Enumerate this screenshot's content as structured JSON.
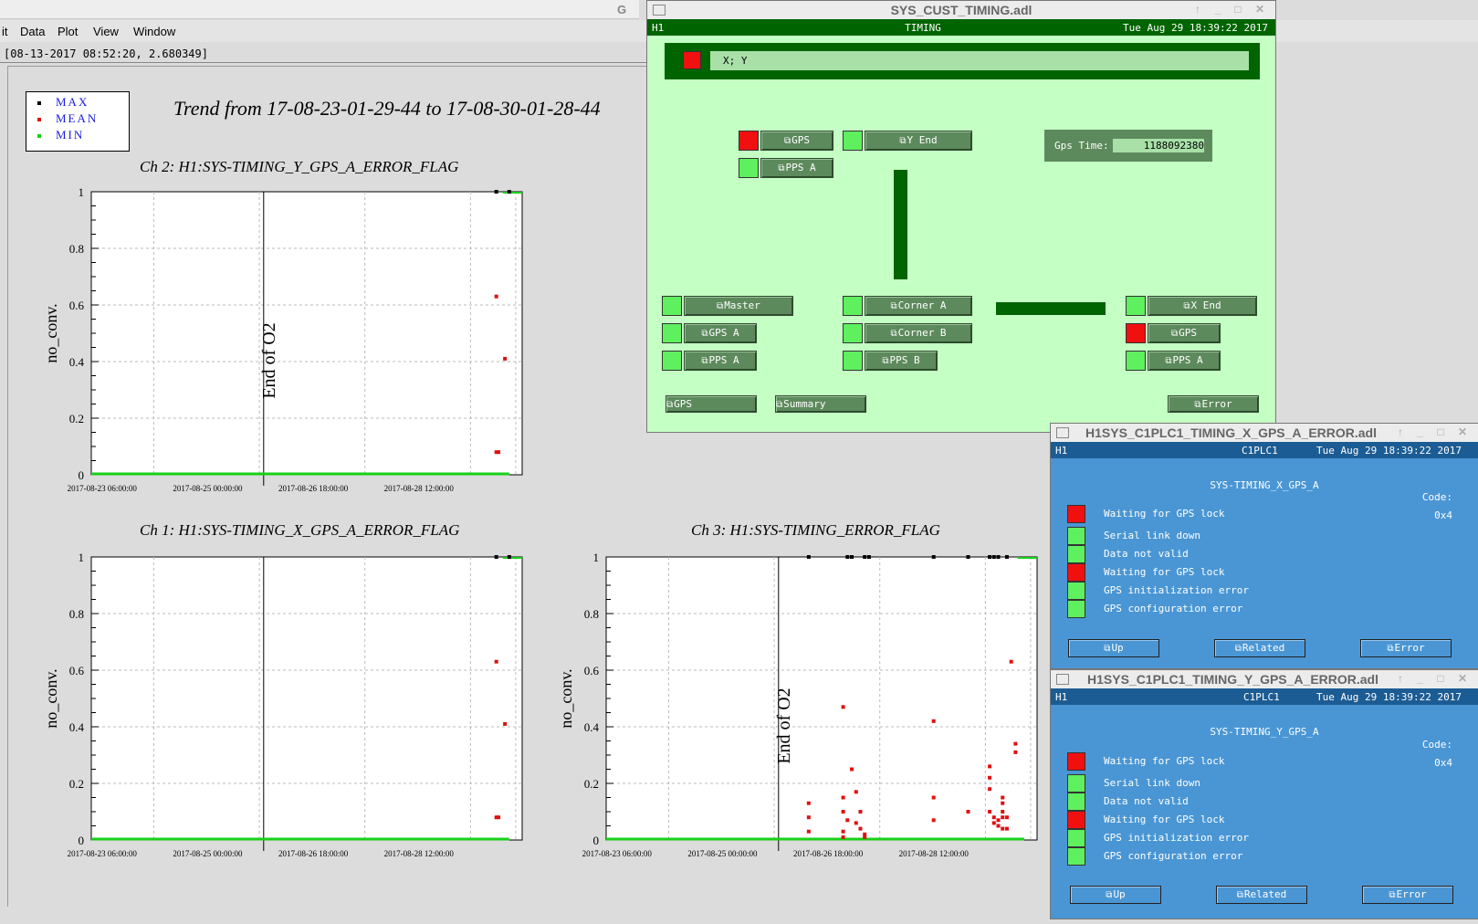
{
  "background_app": {
    "top_fragment": "G",
    "menu": [
      "it",
      "Data",
      "Plot",
      "View",
      "Window"
    ],
    "cursor_readout": "[08-13-2017 08:52:20, 2.680349]",
    "legend": [
      "MAX",
      "MEAN",
      "MIN"
    ],
    "legend_colors": [
      "#000000",
      "#e01010",
      "#18d018"
    ],
    "trend_title": "Trend from 17-08-23-01-29-44 to 17-08-30-01-28-44",
    "marker_label": "End of O2"
  },
  "chart_data": [
    {
      "type": "scatter",
      "title": "Ch 2: H1:SYS-TIMING_Y_GPS_A_ERROR_FLAG",
      "ylabel": "no_conv.",
      "ylim": [
        0,
        1
      ],
      "yticks": [
        "0",
        "0.2",
        "0.4",
        "0.6",
        "0.8",
        "1"
      ],
      "xticks": [
        "2017-08-23 06:00:00",
        "2017-08-25 00:00:00",
        "2017-08-26 18:00:00",
        "2017-08-28 12:00:00"
      ],
      "annotation": "End of O2",
      "series": [
        {
          "name": "MAX",
          "color": "#000000",
          "points": [
            [
              0.94,
              1
            ],
            [
              0.97,
              1
            ]
          ]
        },
        {
          "name": "MEAN",
          "color": "#e01010",
          "points": [
            [
              0.94,
              0.63
            ],
            [
              0.96,
              0.41
            ],
            [
              0.94,
              0.08
            ],
            [
              0.945,
              0.08
            ]
          ]
        },
        {
          "name": "MIN",
          "color": "#18d018",
          "points": [
            [
              0.0,
              0
            ],
            [
              0.97,
              0
            ]
          ]
        }
      ]
    },
    {
      "type": "scatter",
      "title": "Ch 1: H1:SYS-TIMING_X_GPS_A_ERROR_FLAG",
      "ylabel": "no_conv.",
      "ylim": [
        0,
        1
      ],
      "yticks": [
        "0",
        "0.2",
        "0.4",
        "0.6",
        "0.8",
        "1"
      ],
      "xticks": [
        "2017-08-23 06:00:00",
        "2017-08-25 00:00:00",
        "2017-08-26 18:00:00",
        "2017-08-28 12:00:00"
      ],
      "series": [
        {
          "name": "MAX",
          "color": "#000000",
          "points": [
            [
              0.94,
              1
            ],
            [
              0.97,
              1
            ]
          ]
        },
        {
          "name": "MEAN",
          "color": "#e01010",
          "points": [
            [
              0.94,
              0.63
            ],
            [
              0.96,
              0.41
            ],
            [
              0.94,
              0.08
            ],
            [
              0.945,
              0.08
            ]
          ]
        },
        {
          "name": "MIN",
          "color": "#18d018",
          "points": [
            [
              0.0,
              0
            ],
            [
              0.97,
              0
            ]
          ]
        }
      ]
    },
    {
      "type": "scatter",
      "title": "Ch 3: H1:SYS-TIMING_ERROR_FLAG",
      "ylabel": "no_conv.",
      "ylim": [
        0,
        1
      ],
      "yticks": [
        "0",
        "0.2",
        "0.4",
        "0.6",
        "0.8",
        "1"
      ],
      "xticks": [
        "2017-08-23 06:00:00",
        "2017-08-25 00:00:00",
        "2017-08-26 18:00:00",
        "2017-08-28 12:00:00"
      ],
      "annotation": "End of O2",
      "series": [
        {
          "name": "MAX",
          "color": "#000000",
          "points": [
            [
              0.47,
              1
            ],
            [
              0.56,
              1
            ],
            [
              0.57,
              1
            ],
            [
              0.6,
              1
            ],
            [
              0.61,
              1
            ],
            [
              0.76,
              1
            ],
            [
              0.84,
              1
            ],
            [
              0.89,
              1
            ],
            [
              0.9,
              1
            ],
            [
              0.91,
              1
            ],
            [
              0.93,
              1
            ]
          ]
        },
        {
          "name": "MEAN",
          "color": "#e01010",
          "points": [
            [
              0.47,
              0.13
            ],
            [
              0.47,
              0.08
            ],
            [
              0.47,
              0.03
            ],
            [
              0.55,
              0.47
            ],
            [
              0.55,
              0.15
            ],
            [
              0.55,
              0.1
            ],
            [
              0.56,
              0.07
            ],
            [
              0.55,
              0.03
            ],
            [
              0.55,
              0.01
            ],
            [
              0.57,
              0.25
            ],
            [
              0.58,
              0.17
            ],
            [
              0.59,
              0.1
            ],
            [
              0.58,
              0.06
            ],
            [
              0.59,
              0.04
            ],
            [
              0.6,
              0.02
            ],
            [
              0.6,
              0.01
            ],
            [
              0.76,
              0.42
            ],
            [
              0.76,
              0.15
            ],
            [
              0.76,
              0.07
            ],
            [
              0.84,
              0.1
            ],
            [
              0.89,
              0.26
            ],
            [
              0.89,
              0.22
            ],
            [
              0.89,
              0.18
            ],
            [
              0.89,
              0.1
            ],
            [
              0.9,
              0.08
            ],
            [
              0.9,
              0.06
            ],
            [
              0.91,
              0.05
            ],
            [
              0.91,
              0.07
            ],
            [
              0.92,
              0.15
            ],
            [
              0.92,
              0.13
            ],
            [
              0.92,
              0.1
            ],
            [
              0.92,
              0.08
            ],
            [
              0.92,
              0.04
            ],
            [
              0.93,
              0.04
            ],
            [
              0.93,
              0.08
            ],
            [
              0.94,
              0.63
            ],
            [
              0.95,
              0.34
            ],
            [
              0.95,
              0.31
            ]
          ]
        },
        {
          "name": "MIN",
          "color": "#18d018",
          "points": [
            [
              0.0,
              0
            ],
            [
              0.97,
              0
            ]
          ]
        }
      ]
    }
  ],
  "timing_window": {
    "title": "SYS_CUST_TIMING.adl",
    "header_left": "H1",
    "header_center": "TIMING",
    "header_right": "Tue Aug 29 18:39:22 2017",
    "xy_label": "X; Y",
    "gps_time_label": "Gps Time:",
    "gps_time_value": "1188092380",
    "buttons": {
      "top_gps": "GPS",
      "top_pps_a": "PPS A",
      "y_end": "Y End",
      "master": "Master",
      "gps_a": "GPS A",
      "pps_a": "PPS A",
      "corner_a": "Corner A",
      "corner_b": "Corner B",
      "pps_b": "PPS B",
      "x_end": "X End",
      "x_gps": "GPS",
      "x_pps_a": "PPS A",
      "bottom_gps": "GPS",
      "summary": "Summary",
      "error": "Error"
    }
  },
  "x_window": {
    "title": "H1SYS_C1PLC1_TIMING_X_GPS_A_ERROR.adl",
    "header_left": "H1",
    "header_center": "C1PLC1",
    "header_right": "Tue Aug 29 18:39:22 2017",
    "subtitle": "SYS-TIMING_X_GPS_A",
    "code_label": "Code:",
    "code_value": "0x4",
    "rows": [
      "Waiting for GPS lock",
      "Serial link down",
      "Data not valid",
      "Waiting for GPS lock",
      "GPS initialization error",
      "GPS configuration error"
    ],
    "row_states": [
      "red",
      "green",
      "green",
      "red",
      "green",
      "green"
    ],
    "buttons": [
      "Up",
      "Related",
      "Error"
    ]
  },
  "y_window": {
    "title": "H1SYS_C1PLC1_TIMING_Y_GPS_A_ERROR.adl",
    "header_left": "H1",
    "header_center": "C1PLC1",
    "header_right": "Tue Aug 29 18:39:22 2017",
    "subtitle": "SYS-TIMING_Y_GPS_A",
    "code_label": "Code:",
    "code_value": "0x4",
    "rows": [
      "Waiting for GPS lock",
      "Serial link down",
      "Data not valid",
      "Waiting for GPS lock",
      "GPS initialization error",
      "GPS configuration error"
    ],
    "row_states": [
      "red",
      "green",
      "green",
      "red",
      "green",
      "green"
    ],
    "buttons": [
      "Up",
      "Related",
      "Error"
    ]
  }
}
